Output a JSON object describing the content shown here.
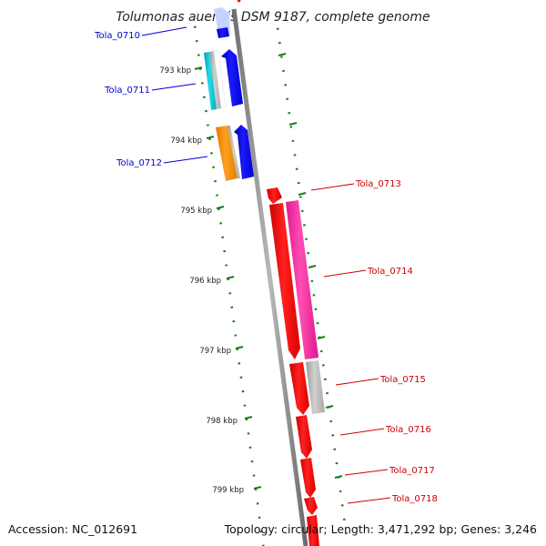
{
  "title": "Tolumonas auensis DSM 9187, complete genome",
  "accession": "Accession: NC_012691",
  "topology": "Topology: circular; Length: 3,471,292 bp; Genes: 3,246",
  "colors": {
    "backbone": "#8a8a8a",
    "tick": "#1a7f1a",
    "forward_label": "#0000cc",
    "reverse_label": "#cc0000"
  },
  "kbp_ticks": [
    "793 kbp",
    "794 kbp",
    "795 kbp",
    "796 kbp",
    "797 kbp",
    "798 kbp",
    "799 kbp"
  ],
  "genes": [
    {
      "locus": "Tola_0710",
      "strand": "left",
      "color": "#0000ee"
    },
    {
      "locus": "Tola_0711",
      "strand": "left",
      "color": "#0000ee"
    },
    {
      "locus": "Tola_0712",
      "strand": "left",
      "color": "#0000ee"
    },
    {
      "locus": "Tola_0713",
      "strand": "right",
      "color": "#ee0000"
    },
    {
      "locus": "Tola_0714",
      "strand": "right",
      "color": "#ee0000"
    },
    {
      "locus": "Tola_0715",
      "strand": "right",
      "color": "#ee0000"
    },
    {
      "locus": "Tola_0716",
      "strand": "right",
      "color": "#ee0000"
    },
    {
      "locus": "Tola_0717",
      "strand": "right",
      "color": "#ee0000"
    },
    {
      "locus": "Tola_0718",
      "strand": "right",
      "color": "#ee0000"
    }
  ],
  "features": {
    "cyan": "#00bbcc",
    "gray": "#b5b5b5",
    "orange": "#ff8c00",
    "pink": "#ff2aa0"
  }
}
